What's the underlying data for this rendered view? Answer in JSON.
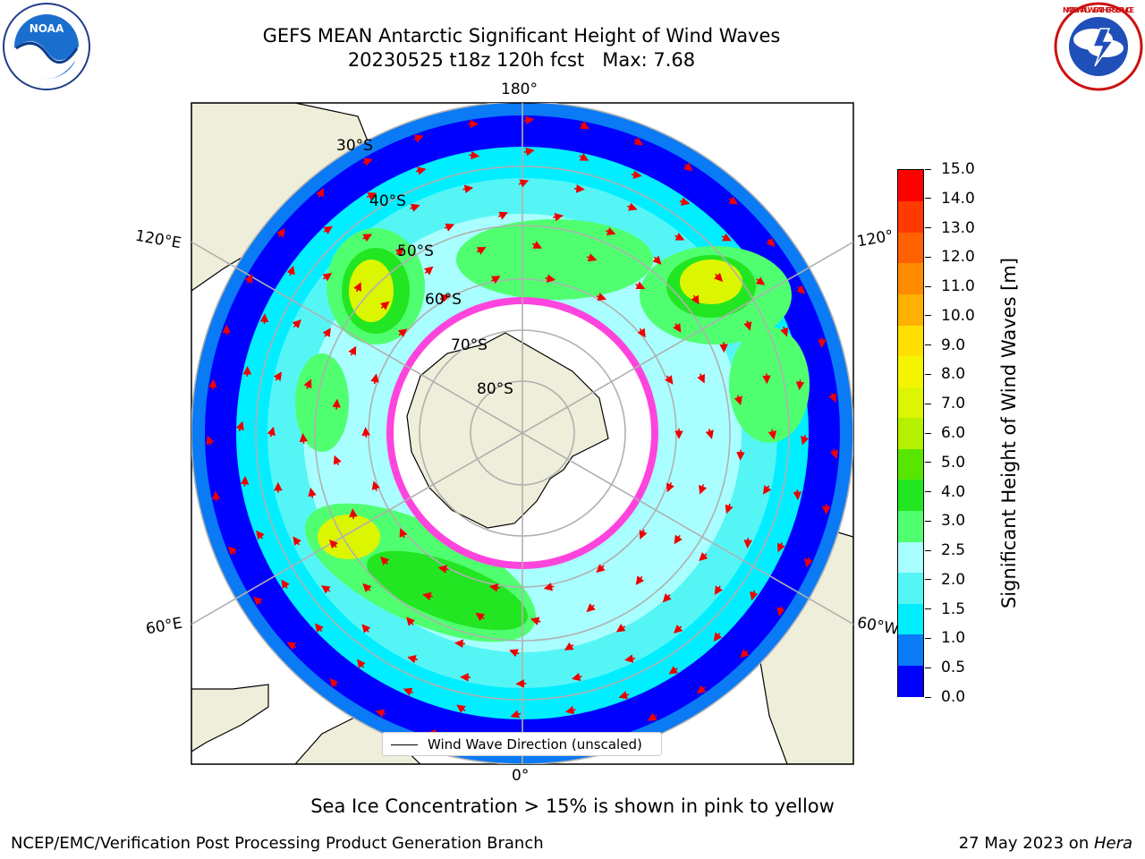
{
  "header": {
    "title": "GEFS MEAN Antarctic Significant Height of Wind Waves",
    "subtitle": "20230525 t18z 120h fcst   Max: 7.68"
  },
  "map": {
    "projection": "south-polar-stereographic",
    "longitude_labels": [
      "180°",
      "120°E",
      "120°",
      "60°E",
      "60°W",
      "0°"
    ],
    "latitude_labels": [
      "30°S",
      "40°S",
      "50°S",
      "60°S",
      "70°S",
      "80°S"
    ],
    "legend_label": "Wind Wave Direction (unscaled)"
  },
  "colorbar": {
    "title": "Significant Height of Wind Waves [m]",
    "ticks": [
      "0.0",
      "0.5",
      "1.0",
      "1.5",
      "2.0",
      "2.5",
      "3.0",
      "4.0",
      "5.0",
      "6.0",
      "7.0",
      "8.0",
      "9.0",
      "10.0",
      "11.0",
      "12.0",
      "13.0",
      "14.0",
      "15.0"
    ],
    "colors": [
      "#0000ff",
      "#0a7af5",
      "#00eeff",
      "#56f5f5",
      "#a9ffff",
      "#50ff70",
      "#22e622",
      "#58e600",
      "#b4f000",
      "#dcf500",
      "#f5f500",
      "#ffdf00",
      "#ffb000",
      "#ff8c00",
      "#ff6000",
      "#ff3a00",
      "#ff0000"
    ]
  },
  "footer": {
    "ice_note": "Sea Ice Concentration > 15% is shown in pink to yellow",
    "branch": "NCEP/EMC/Verification Post Processing Product Generation Branch",
    "date": "27 May 2023 on ",
    "machine": "Hera"
  },
  "logos": {
    "noaa_text": "NOAA",
    "nws_text": "NATIONAL WEATHER SERVICE"
  }
}
